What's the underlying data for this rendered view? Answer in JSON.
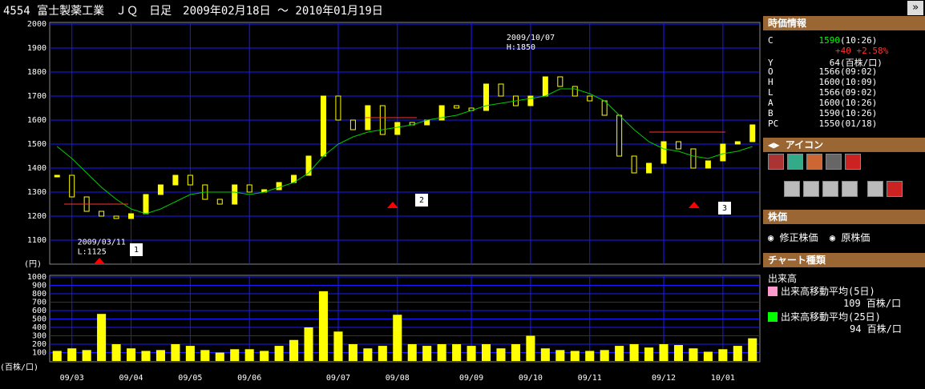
{
  "header": {
    "title": "4554 富士製薬工業　ＪＱ　日足　2009年02月18日 ～ 2010年01月19日"
  },
  "chart_data": [
    {
      "type": "candle",
      "ylim": [
        1000,
        2000
      ],
      "yticks": [
        1100,
        1200,
        1300,
        1400,
        1500,
        1600,
        1700,
        1800,
        1900,
        2000
      ],
      "unit_label": "(円)",
      "grid": true,
      "annotations": [
        {
          "date": "2009/03/11",
          "text": "L:1125"
        },
        {
          "date": "2009/10/07",
          "text": "H:1850"
        }
      ],
      "event_markers": [
        "1",
        "2",
        "3"
      ],
      "series": [
        {
          "name": "終値",
          "color": "#ffff00",
          "values": [
            1370,
            1280,
            1220,
            1200,
            1190,
            1210,
            1290,
            1330,
            1370,
            1330,
            1270,
            1250,
            1330,
            1300,
            1310,
            1340,
            1370,
            1450,
            1700,
            1600,
            1560,
            1660,
            1540,
            1590,
            1580,
            1600,
            1660,
            1650,
            1640,
            1750,
            1700,
            1660,
            1700,
            1780,
            1740,
            1700,
            1680,
            1620,
            1450,
            1380,
            1420,
            1510,
            1480,
            1400,
            1430,
            1500,
            1510,
            1580
          ]
        },
        {
          "name": "移動平均(25日)",
          "color": "#00cc00",
          "values": [
            1490,
            1440,
            1380,
            1320,
            1270,
            1230,
            1210,
            1230,
            1260,
            1290,
            1300,
            1300,
            1300,
            1290,
            1300,
            1320,
            1340,
            1380,
            1450,
            1500,
            1530,
            1550,
            1560,
            1570,
            1580,
            1600,
            1610,
            1620,
            1640,
            1660,
            1670,
            1680,
            1690,
            1700,
            1730,
            1730,
            1710,
            1680,
            1620,
            1560,
            1510,
            1480,
            1470,
            1450,
            1440,
            1460,
            1470,
            1490
          ]
        }
      ]
    },
    {
      "type": "bar",
      "ylim": [
        0,
        1000
      ],
      "yticks": [
        100,
        200,
        300,
        400,
        500,
        600,
        700,
        800,
        900,
        1000
      ],
      "unit_label": "(百株/口)",
      "grid": true,
      "categories": [
        null,
        "09/03",
        null,
        null,
        null,
        "09/04",
        null,
        null,
        null,
        "09/05",
        null,
        null,
        null,
        "09/06",
        null,
        null,
        null,
        null,
        null,
        "09/07",
        null,
        null,
        null,
        "09/08",
        null,
        null,
        null,
        null,
        "09/09",
        null,
        null,
        null,
        "09/10",
        null,
        null,
        null,
        "09/11",
        null,
        null,
        null,
        null,
        "09/12",
        null,
        null,
        null,
        "10/01",
        null,
        null
      ],
      "series": [
        {
          "name": "出来高",
          "color": "#ffff00",
          "values": [
            120,
            150,
            130,
            560,
            200,
            150,
            120,
            130,
            200,
            180,
            130,
            100,
            140,
            140,
            120,
            180,
            250,
            400,
            830,
            350,
            200,
            150,
            180,
            550,
            200,
            180,
            200,
            200,
            180,
            200,
            150,
            200,
            300,
            150,
            130,
            120,
            120,
            130,
            180,
            200,
            160,
            200,
            190,
            150,
            110,
            140,
            180,
            270
          ]
        }
      ]
    }
  ],
  "side_panel": {
    "quote_title": "時価情報",
    "quote": {
      "c_label": "C",
      "c_value": "1590",
      "c_time": "(10:26)",
      "change": "+40 +2.58%",
      "rows": [
        [
          "Y",
          "64",
          "(百株/口)"
        ],
        [
          "O",
          "1566",
          "(09:02)"
        ],
        [
          "H",
          "1600",
          "(10:09)"
        ],
        [
          "L",
          "1566",
          "(09:02)"
        ],
        [
          "A",
          "1600",
          "(10:26)"
        ],
        [
          "B",
          "1590",
          "(10:26)"
        ],
        [
          "PC",
          "1550",
          "(01/18)"
        ]
      ]
    },
    "icon_title": "アイコン",
    "price_title": "株価",
    "radios": [
      "修正株価",
      "原株価"
    ],
    "chart_type_title": "チャート種類",
    "volume_label": "出来高",
    "legend": [
      {
        "name": "出来高移動平均(5日)",
        "value": "109 百株/口"
      },
      {
        "name": "出来高移動平均(25日)",
        "value": "94 百株/口"
      }
    ]
  }
}
